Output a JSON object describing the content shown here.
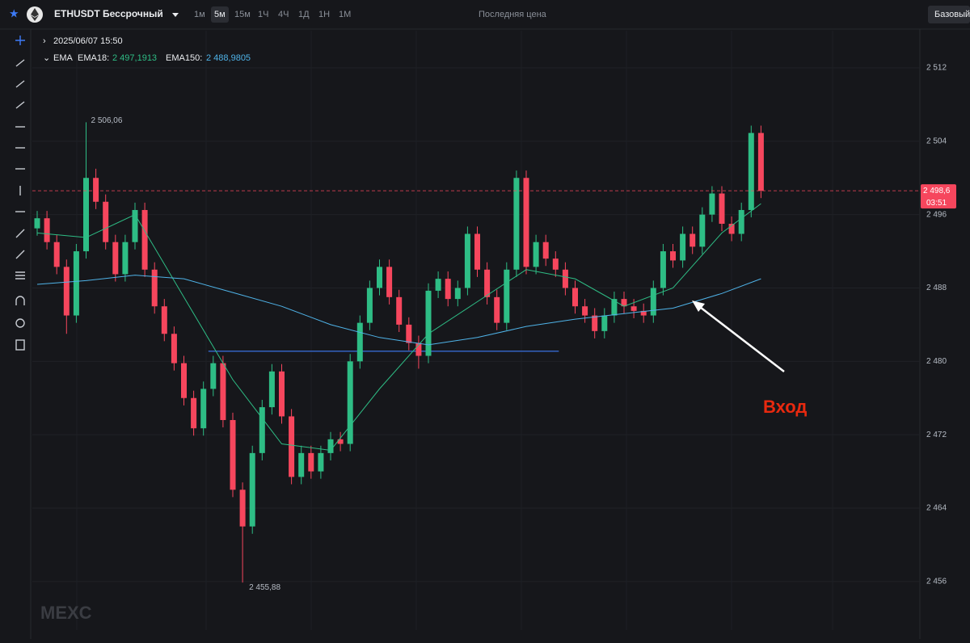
{
  "toolbar": {
    "symbol": "ETHUSDT Бессрочный",
    "intervals": [
      "1м",
      "5м",
      "15м",
      "1Ч",
      "4Ч",
      "1Д",
      "1Н",
      "1М"
    ],
    "active_interval": 1,
    "price_type": "Последняя цена",
    "view": "Базовый"
  },
  "legend": {
    "time": "2025/06/07 15:50",
    "indicator": "EMA",
    "ema18_label": "EMA18:",
    "ema18_value": "2 497,1913",
    "ema150_label": "EMA150:",
    "ema150_value": "2 488,9805"
  },
  "watermark": "MEXC",
  "chart_data": {
    "type": "candlestick",
    "ylim": [
      2450.7,
      2516.05
    ],
    "yticks": [
      {
        "value": 2456,
        "label": "2 456"
      },
      {
        "value": 2464,
        "label": "2 464"
      },
      {
        "value": 2472,
        "label": "2 472"
      },
      {
        "value": 2480,
        "label": "2 480"
      },
      {
        "value": 2488,
        "label": "2 488"
      },
      {
        "value": 2496,
        "label": "2 496"
      },
      {
        "value": 2504,
        "label": "2 504"
      },
      {
        "value": 2512,
        "label": "2 512"
      }
    ],
    "grid": true,
    "up_color": "#2ebd85",
    "down_color": "#f6465d",
    "candles": [
      [
        2494.5,
        2496.4,
        2493.7,
        2495.6
      ],
      [
        2495.6,
        2496.4,
        2492.2,
        2493
      ],
      [
        2493,
        2493.8,
        2489.5,
        2490.3
      ],
      [
        2490.3,
        2491.1,
        2483,
        2485
      ],
      [
        2485,
        2492.8,
        2484.2,
        2492
      ],
      [
        2492,
        2506.06,
        2491.2,
        2500
      ],
      [
        2500,
        2501,
        2496.6,
        2497.4
      ],
      [
        2497.4,
        2498.2,
        2492.2,
        2493
      ],
      [
        2493,
        2493.8,
        2488.7,
        2489.5
      ],
      [
        2489.5,
        2493.8,
        2488.7,
        2493
      ],
      [
        2493,
        2497.3,
        2492.2,
        2496.5
      ],
      [
        2496.5,
        2497.3,
        2489.2,
        2490
      ],
      [
        2490,
        2490.8,
        2485.2,
        2486
      ],
      [
        2486,
        2486.8,
        2482.2,
        2483
      ],
      [
        2483,
        2483.8,
        2479,
        2479.8
      ],
      [
        2479.8,
        2480.6,
        2475.2,
        2476
      ],
      [
        2476,
        2476.8,
        2471.9,
        2472.7
      ],
      [
        2472.7,
        2477.8,
        2471.9,
        2477
      ],
      [
        2477,
        2480.6,
        2476.2,
        2479.8
      ],
      [
        2479.8,
        2480.6,
        2472.8,
        2473.6
      ],
      [
        2473.6,
        2474.4,
        2465.2,
        2466
      ],
      [
        2466,
        2466.8,
        2455.88,
        2462
      ],
      [
        2462,
        2470.8,
        2461.2,
        2470
      ],
      [
        2470,
        2475.8,
        2469.2,
        2475
      ],
      [
        2475,
        2479.7,
        2474.2,
        2478.9
      ],
      [
        2478.9,
        2479.7,
        2473.2,
        2474
      ],
      [
        2474,
        2474.8,
        2466.6,
        2467.4
      ],
      [
        2467.4,
        2470.8,
        2466.6,
        2470
      ],
      [
        2470,
        2470.8,
        2467.2,
        2468
      ],
      [
        2468,
        2470.8,
        2467.2,
        2470
      ],
      [
        2470,
        2472.3,
        2469.2,
        2471.5
      ],
      [
        2471.5,
        2472.3,
        2470.2,
        2471
      ],
      [
        2471,
        2480.8,
        2470.2,
        2480
      ],
      [
        2480,
        2485,
        2479.2,
        2484.2
      ],
      [
        2484.2,
        2488.8,
        2483.4,
        2488
      ],
      [
        2488,
        2491.1,
        2487.2,
        2490.3
      ],
      [
        2490.3,
        2491.1,
        2486.2,
        2487
      ],
      [
        2487,
        2487.8,
        2483.2,
        2484
      ],
      [
        2484,
        2484.8,
        2481.2,
        2482
      ],
      [
        2482,
        2482.8,
        2479.2,
        2480.6
      ],
      [
        2480.6,
        2488.5,
        2479.8,
        2487.7
      ],
      [
        2487.7,
        2489.8,
        2486.9,
        2489
      ],
      [
        2489,
        2489.8,
        2486,
        2486.8
      ],
      [
        2486.8,
        2488.8,
        2486,
        2488
      ],
      [
        2488,
        2494.7,
        2487.2,
        2493.9
      ],
      [
        2493.9,
        2494.7,
        2489.2,
        2490
      ],
      [
        2490,
        2490.8,
        2486.2,
        2487
      ],
      [
        2487,
        2487.8,
        2483.4,
        2484.2
      ],
      [
        2484.2,
        2490.8,
        2483.4,
        2490
      ],
      [
        2490,
        2500.8,
        2489.2,
        2500
      ],
      [
        2500,
        2500.8,
        2489.5,
        2490.3
      ],
      [
        2490.3,
        2493.8,
        2489.5,
        2493
      ],
      [
        2493,
        2493.8,
        2490.4,
        2491.2
      ],
      [
        2491.2,
        2492,
        2489.2,
        2490
      ],
      [
        2490,
        2490.8,
        2487.2,
        2488
      ],
      [
        2488,
        2488.8,
        2485.2,
        2486
      ],
      [
        2486,
        2486.8,
        2484.2,
        2485
      ],
      [
        2485,
        2485.8,
        2482.5,
        2483.3
      ],
      [
        2483.3,
        2485.8,
        2482.5,
        2485
      ],
      [
        2485,
        2487.6,
        2484.2,
        2486.8
      ],
      [
        2486.8,
        2487.6,
        2485.2,
        2486
      ],
      [
        2486,
        2486.8,
        2484.7,
        2485.5
      ],
      [
        2485.5,
        2486.3,
        2484.2,
        2485
      ],
      [
        2485,
        2488.8,
        2484.2,
        2488
      ],
      [
        2488,
        2492.8,
        2487.2,
        2492
      ],
      [
        2492,
        2492.8,
        2490.2,
        2491
      ],
      [
        2491,
        2494.7,
        2490.2,
        2493.9
      ],
      [
        2493.9,
        2494.7,
        2491.7,
        2492.5
      ],
      [
        2492.5,
        2496.8,
        2491.7,
        2496
      ],
      [
        2496,
        2499.1,
        2495.2,
        2498.3
      ],
      [
        2498.3,
        2499.1,
        2494.2,
        2495
      ],
      [
        2495,
        2495.8,
        2493.1,
        2493.9
      ],
      [
        2493.9,
        2497.3,
        2493.1,
        2496.5
      ],
      [
        2496.5,
        2505.7,
        2495.7,
        2504.9
      ],
      [
        2504.9,
        2505.7,
        2497.8,
        2498.6
      ]
    ],
    "series": [
      {
        "name": "EMA18",
        "color": "#2ebd85",
        "x": [
          0,
          5,
          10,
          15,
          20,
          25,
          30,
          35,
          40,
          45,
          50,
          55,
          60,
          65,
          70,
          74
        ],
        "values": [
          2494,
          2493.5,
          2496,
          2487,
          2478,
          2471,
          2470.3,
          2477,
          2483,
          2486.5,
          2490,
          2489,
          2486,
          2488,
          2494,
          2497.19
        ]
      },
      {
        "name": "EMA150",
        "color": "#4fb3e8",
        "x": [
          0,
          5,
          10,
          15,
          20,
          25,
          30,
          35,
          40,
          45,
          50,
          55,
          60,
          65,
          70,
          74
        ],
        "values": [
          2488.4,
          2488.8,
          2489.4,
          2489,
          2487.5,
          2486,
          2484,
          2482.6,
          2481.8,
          2482.6,
          2483.8,
          2484.6,
          2485.2,
          2485.8,
          2487.4,
          2489
        ]
      }
    ],
    "horizontal_line": {
      "value": 2481.1,
      "from": 18,
      "to": 53,
      "color": "#3d7bf7"
    },
    "last_price": {
      "value": 2498.6,
      "label": "2 498,6",
      "countdown": "03:51"
    },
    "high_marker": {
      "candle": 5,
      "label": "2 506,06"
    },
    "low_marker": {
      "candle": 21,
      "label": "2 455,88"
    },
    "annotation": "Вход"
  }
}
